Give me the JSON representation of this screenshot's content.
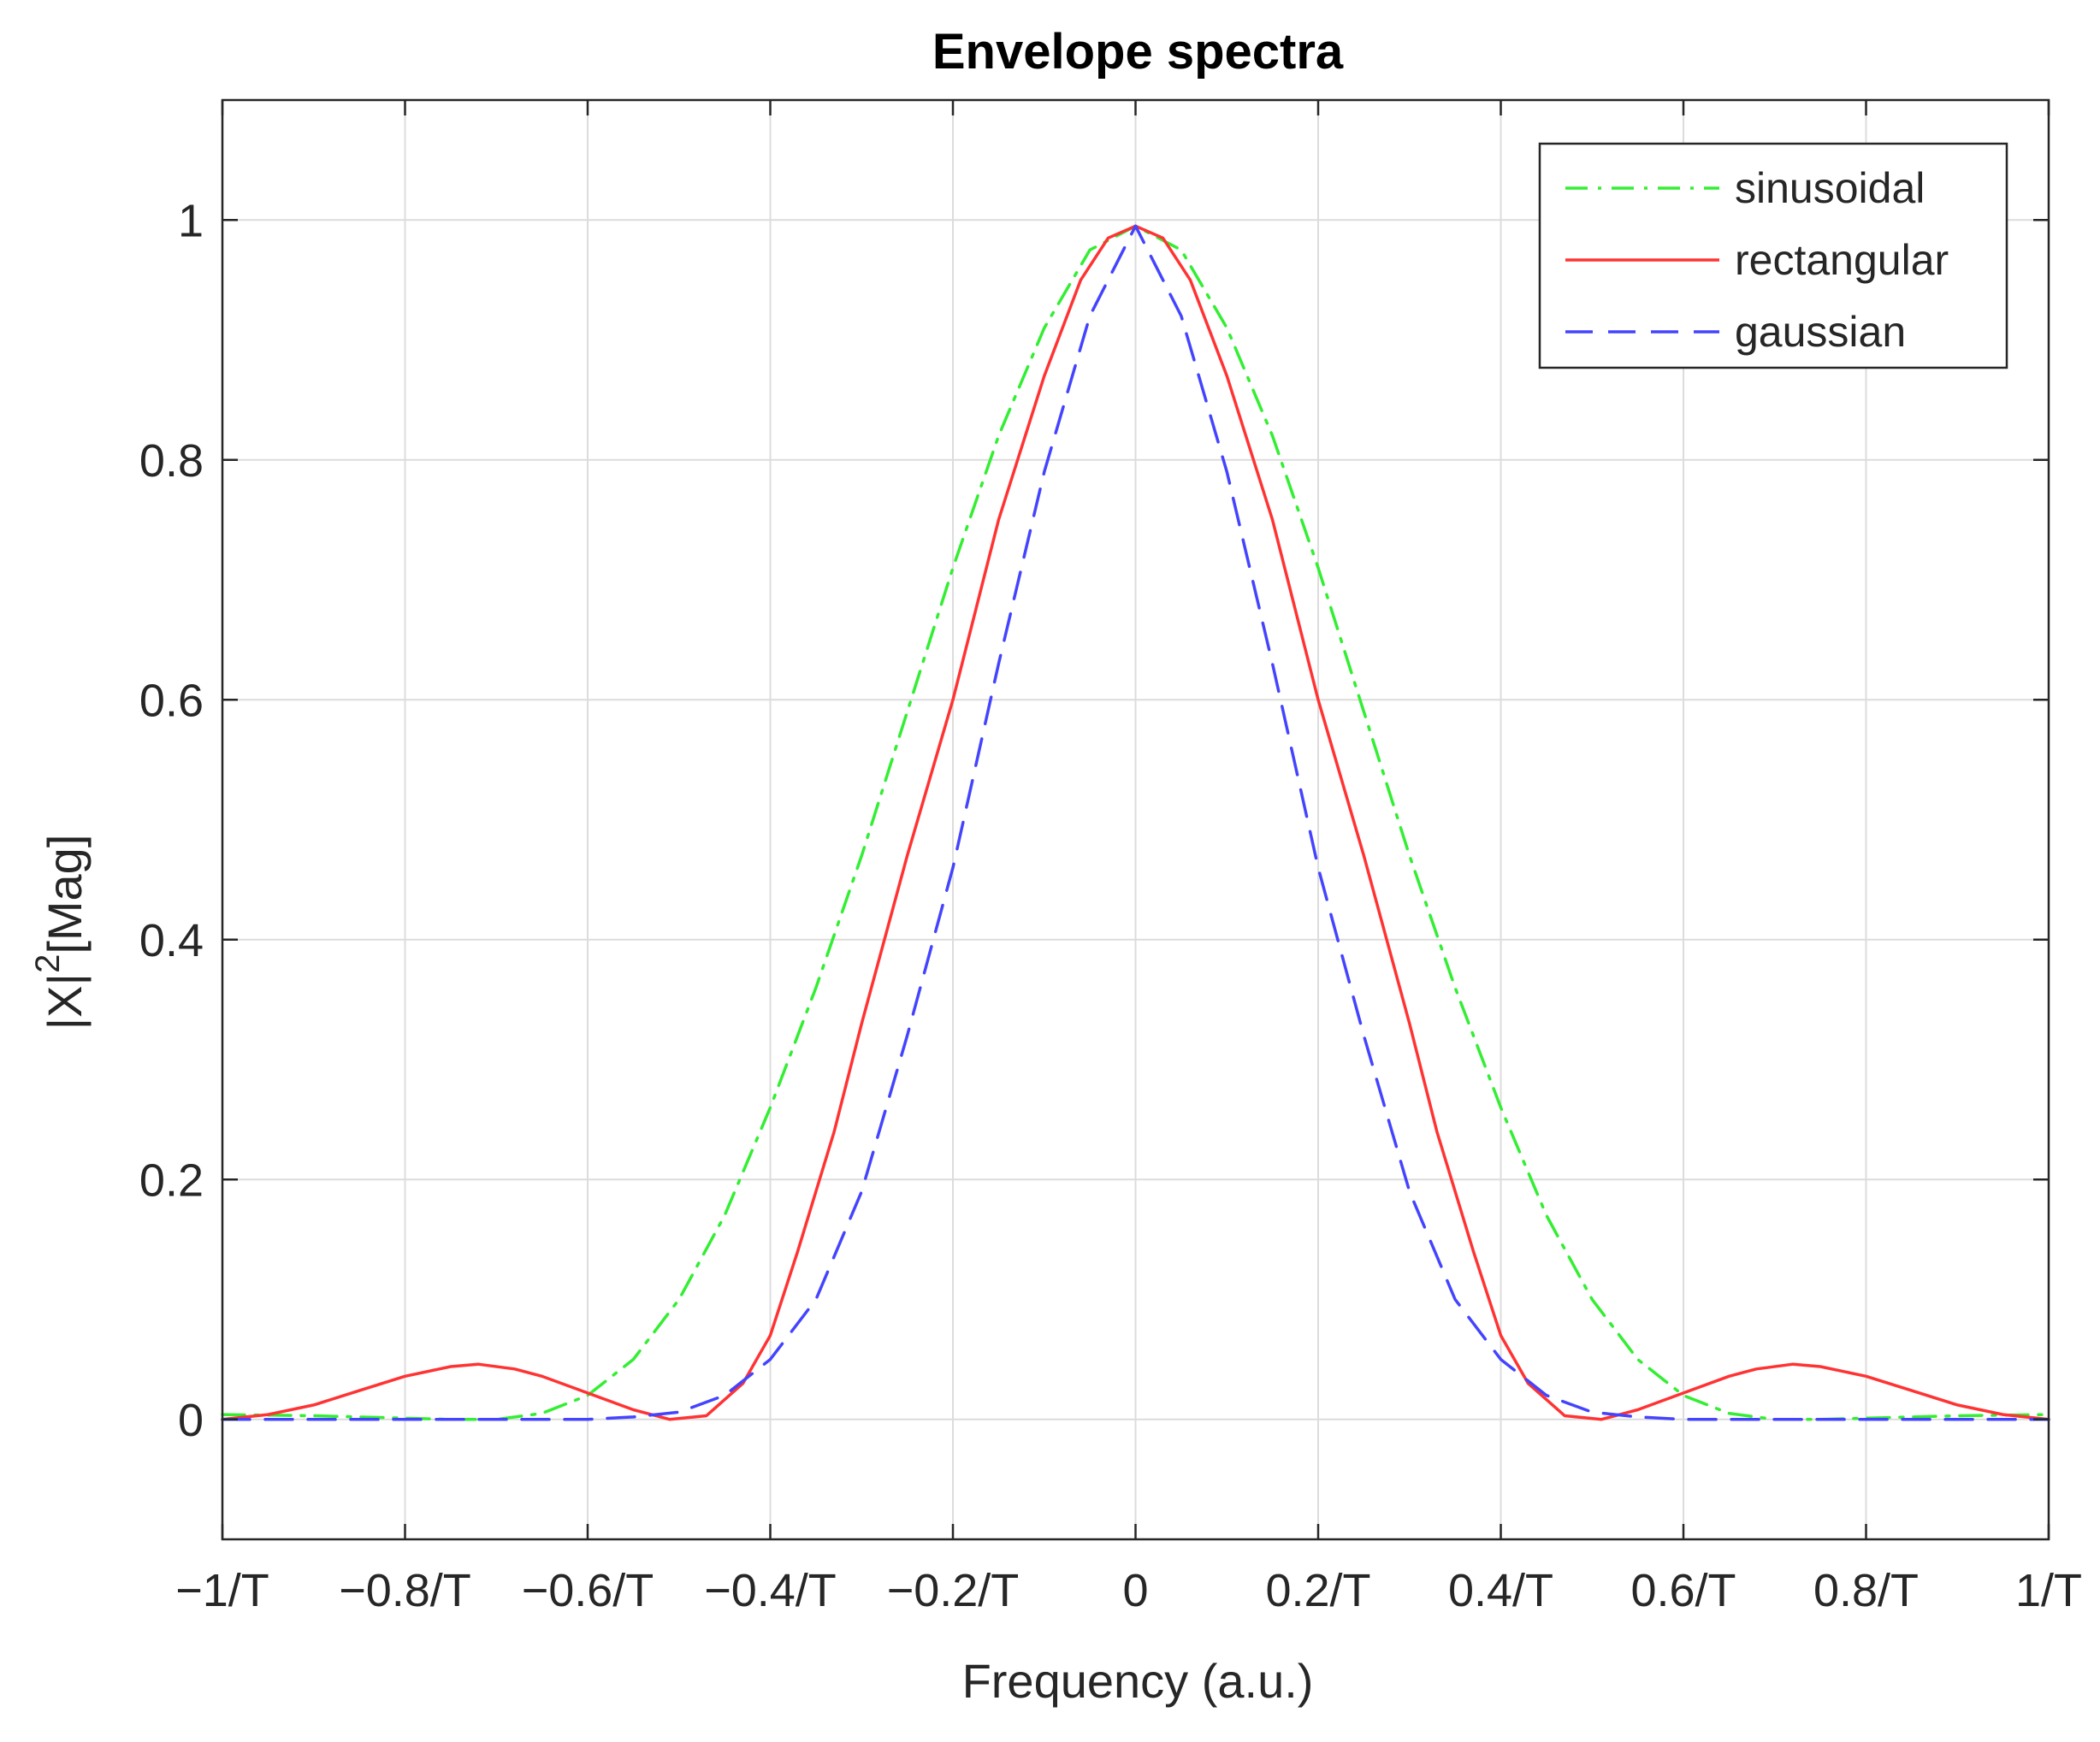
{
  "chart_data": {
    "type": "line",
    "title": "Envelope spectra",
    "xlabel": "Frequency (a.u.)",
    "ylabel": "|X|²[Mag]",
    "ylabel_parts": {
      "base": "|X|",
      "sup": "2",
      "rest": "[Mag]"
    },
    "xlim": [
      -1,
      1
    ],
    "ylim": [
      -0.1,
      1.1
    ],
    "grid": true,
    "legend_position": "top-right",
    "x_ticks": [
      {
        "value": -1,
        "label": "−1/T"
      },
      {
        "value": -0.8,
        "label": "−0.8/T"
      },
      {
        "value": -0.6,
        "label": "−0.6/T"
      },
      {
        "value": -0.4,
        "label": "−0.4/T"
      },
      {
        "value": -0.2,
        "label": "−0.2/T"
      },
      {
        "value": 0,
        "label": "0"
      },
      {
        "value": 0.2,
        "label": "0.2/T"
      },
      {
        "value": 0.4,
        "label": "0.4/T"
      },
      {
        "value": 0.6,
        "label": "0.6/T"
      },
      {
        "value": 0.8,
        "label": "0.8/T"
      },
      {
        "value": 1,
        "label": "1/T"
      }
    ],
    "y_ticks": [
      {
        "value": 0,
        "label": "0"
      },
      {
        "value": 0.2,
        "label": "0.2"
      },
      {
        "value": 0.4,
        "label": "0.4"
      },
      {
        "value": 0.6,
        "label": "0.6"
      },
      {
        "value": 0.8,
        "label": "0.8"
      },
      {
        "value": 1,
        "label": "1"
      }
    ],
    "series": [
      {
        "name": "sinusoidal",
        "color": "#33ee33",
        "dash": "dashdot",
        "x": [
          -1,
          -0.9,
          -0.8,
          -0.75,
          -0.7,
          -0.65,
          -0.6,
          -0.55,
          -0.5,
          -0.45,
          -0.4,
          -0.35,
          -0.3,
          -0.25,
          -0.2,
          -0.15,
          -0.1,
          -0.05,
          0,
          0.05,
          0.1,
          0.15,
          0.2,
          0.25,
          0.3,
          0.35,
          0.4,
          0.45,
          0.5,
          0.55,
          0.6,
          0.65,
          0.7,
          0.75,
          0.8,
          0.9,
          1
        ],
        "y": [
          0.004,
          0.003,
          0.001,
          0.0,
          0.0,
          0.005,
          0.02,
          0.05,
          0.1,
          0.17,
          0.26,
          0.36,
          0.47,
          0.59,
          0.71,
          0.82,
          0.91,
          0.975,
          0.995,
          0.975,
          0.91,
          0.82,
          0.71,
          0.59,
          0.47,
          0.36,
          0.26,
          0.17,
          0.1,
          0.05,
          0.02,
          0.005,
          0.0,
          0.0,
          0.001,
          0.003,
          0.004
        ]
      },
      {
        "name": "rectangular",
        "color": "#ff3333",
        "dash": "solid",
        "x": [
          -1,
          -0.95,
          -0.9,
          -0.85,
          -0.8,
          -0.75,
          -0.72,
          -0.68,
          -0.65,
          -0.6,
          -0.55,
          -0.51,
          -0.47,
          -0.43,
          -0.4,
          -0.37,
          -0.33,
          -0.3,
          -0.25,
          -0.2,
          -0.15,
          -0.1,
          -0.06,
          -0.03,
          0,
          0.03,
          0.06,
          0.1,
          0.15,
          0.2,
          0.25,
          0.3,
          0.33,
          0.37,
          0.4,
          0.43,
          0.47,
          0.51,
          0.55,
          0.6,
          0.65,
          0.68,
          0.72,
          0.75,
          0.8,
          0.85,
          0.9,
          0.95,
          1
        ],
        "y": [
          0.0,
          0.004,
          0.012,
          0.024,
          0.036,
          0.044,
          0.046,
          0.042,
          0.036,
          0.022,
          0.008,
          0.0,
          0.003,
          0.03,
          0.07,
          0.14,
          0.24,
          0.33,
          0.47,
          0.6,
          0.75,
          0.87,
          0.95,
          0.985,
          0.995,
          0.985,
          0.95,
          0.87,
          0.75,
          0.6,
          0.47,
          0.33,
          0.24,
          0.14,
          0.07,
          0.03,
          0.003,
          0.0,
          0.008,
          0.022,
          0.036,
          0.042,
          0.046,
          0.044,
          0.036,
          0.024,
          0.012,
          0.004,
          0.0
        ]
      },
      {
        "name": "gaussian",
        "color": "#4444ff",
        "dash": "dashed",
        "x": [
          -1,
          -0.8,
          -0.7,
          -0.6,
          -0.55,
          -0.5,
          -0.45,
          -0.4,
          -0.35,
          -0.3,
          -0.25,
          -0.2,
          -0.15,
          -0.1,
          -0.05,
          0,
          0.05,
          0.1,
          0.15,
          0.2,
          0.25,
          0.3,
          0.35,
          0.4,
          0.45,
          0.5,
          0.55,
          0.6,
          0.7,
          0.8,
          1
        ],
        "y": [
          0.0,
          0.0,
          0.0,
          0.0,
          0.002,
          0.006,
          0.02,
          0.05,
          0.1,
          0.19,
          0.32,
          0.46,
          0.63,
          0.79,
          0.92,
          0.995,
          0.92,
          0.79,
          0.63,
          0.46,
          0.32,
          0.19,
          0.1,
          0.05,
          0.02,
          0.006,
          0.002,
          0.0,
          0.0,
          0.0,
          0.0
        ]
      }
    ]
  }
}
